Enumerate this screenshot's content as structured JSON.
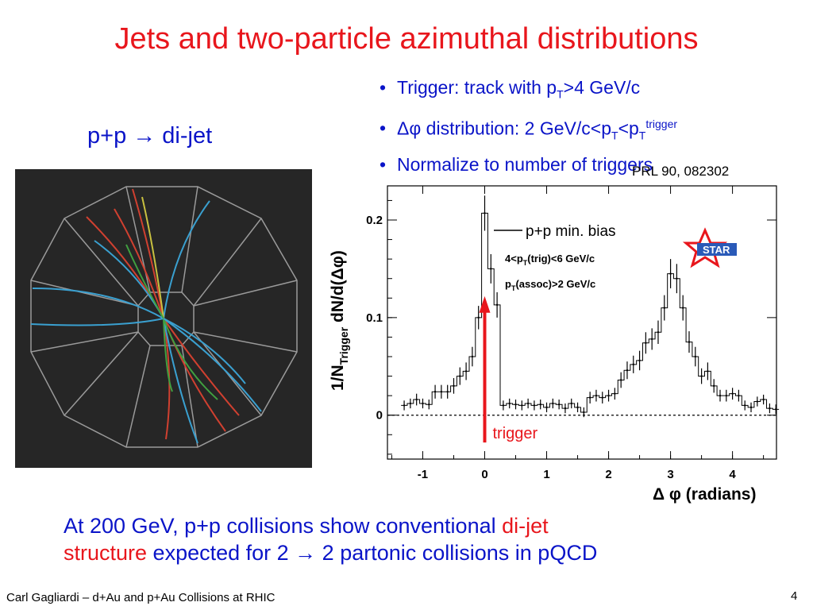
{
  "slide": {
    "title": "Jets and two-particle azimuthal distributions",
    "subtitle_left_pre": "p+p ",
    "subtitle_left_arrow": "→",
    "subtitle_left_post": " di-jet",
    "bullets": [
      {
        "pre": "Trigger:  track with p",
        "sub": "T",
        "post": ">4 GeV/c"
      },
      {
        "pre": "Δφ distribution:  2 GeV/c<p",
        "sub": "T",
        "mid": "<p",
        "sub2": "T",
        "sup": "trigger"
      },
      {
        "pre": "Normalize to number of triggers"
      }
    ],
    "reference": "PRL 90, 082302",
    "conclusion": {
      "part1": "At 200 GeV, p+p collisions show conventional ",
      "red1": "di-jet",
      "red2": "structure",
      "part2": " expected for 2 ",
      "arrow": "→",
      "part3": " 2 partonic collisions in pQCD"
    },
    "footer_left": "Carl Gagliardi – d+Au and p+Au Collisions at RHIC",
    "page_number": "4"
  },
  "chart_data": {
    "type": "line",
    "x": [
      -1.3,
      -1.2,
      -1.1,
      -1.0,
      -0.9,
      -0.8,
      -0.7,
      -0.6,
      -0.5,
      -0.4,
      -0.3,
      -0.2,
      -0.1,
      0.0,
      0.1,
      0.2,
      0.3,
      0.4,
      0.5,
      0.6,
      0.7,
      0.8,
      0.9,
      1.0,
      1.1,
      1.2,
      1.3,
      1.4,
      1.5,
      1.6,
      1.7,
      1.8,
      1.9,
      2.0,
      2.1,
      2.2,
      2.3,
      2.4,
      2.5,
      2.6,
      2.7,
      2.8,
      2.9,
      3.0,
      3.1,
      3.2,
      3.3,
      3.4,
      3.5,
      3.6,
      3.7,
      3.8,
      3.9,
      4.0,
      4.1,
      4.2,
      4.3,
      4.4,
      4.5,
      4.6,
      4.7
    ],
    "series": [
      {
        "name": "p+p min. bias",
        "values": [
          0.01,
          0.012,
          0.016,
          0.012,
          0.011,
          0.024,
          0.024,
          0.024,
          0.03,
          0.04,
          0.045,
          0.06,
          0.1,
          0.207,
          0.15,
          0.113,
          0.01,
          0.012,
          0.011,
          0.01,
          0.012,
          0.01,
          0.011,
          0.008,
          0.012,
          0.011,
          0.007,
          0.012,
          0.008,
          0.003,
          0.018,
          0.02,
          0.018,
          0.02,
          0.022,
          0.036,
          0.046,
          0.052,
          0.056,
          0.074,
          0.078,
          0.085,
          0.11,
          0.145,
          0.14,
          0.11,
          0.075,
          0.06,
          0.04,
          0.045,
          0.03,
          0.02,
          0.02,
          0.022,
          0.02,
          0.01,
          0.008,
          0.014,
          0.016,
          0.007,
          0.006
        ],
        "errors": [
          0.005,
          0.005,
          0.006,
          0.005,
          0.005,
          0.007,
          0.007,
          0.007,
          0.008,
          0.009,
          0.009,
          0.01,
          0.012,
          0.018,
          0.015,
          0.013,
          0.005,
          0.005,
          0.005,
          0.005,
          0.005,
          0.005,
          0.005,
          0.005,
          0.005,
          0.005,
          0.005,
          0.005,
          0.005,
          0.005,
          0.006,
          0.006,
          0.006,
          0.006,
          0.006,
          0.008,
          0.009,
          0.009,
          0.01,
          0.011,
          0.011,
          0.012,
          0.013,
          0.015,
          0.015,
          0.013,
          0.011,
          0.01,
          0.008,
          0.009,
          0.007,
          0.006,
          0.006,
          0.006,
          0.006,
          0.005,
          0.005,
          0.005,
          0.005,
          0.005,
          0.005
        ]
      }
    ],
    "xlim": [
      -1.57,
      4.71
    ],
    "ylim": [
      -0.045,
      0.235
    ],
    "xticks": [
      -1,
      0,
      1,
      2,
      3,
      4
    ],
    "yticks": [
      0,
      0.1,
      0.2
    ],
    "xtick_labels": [
      "-1",
      "0",
      "1",
      "2",
      "3",
      "4"
    ],
    "ytick_labels": [
      "0",
      "0.1",
      "0.2"
    ],
    "xlabel": "Δ φ (radians)",
    "ylabel_pre": "1/N",
    "ylabel_sub": "Trigger",
    "ylabel_post": " dN/d(Δφ)",
    "legend": "p+p min. bias",
    "annotations": [
      {
        "pre": "4<p",
        "sub": "T",
        "post": "(trig)<6 GeV/c"
      },
      {
        "pre": "p",
        "sub": "T",
        "post": "(assoc)>2 GeV/c"
      }
    ],
    "trigger_label": "trigger",
    "trigger_x": 0,
    "star_logo": "STAR",
    "colors": {
      "line": "#000000",
      "arrow": "#e8161c",
      "logo_star": "#e8161c",
      "logo_text": "#2a5ab8"
    }
  }
}
